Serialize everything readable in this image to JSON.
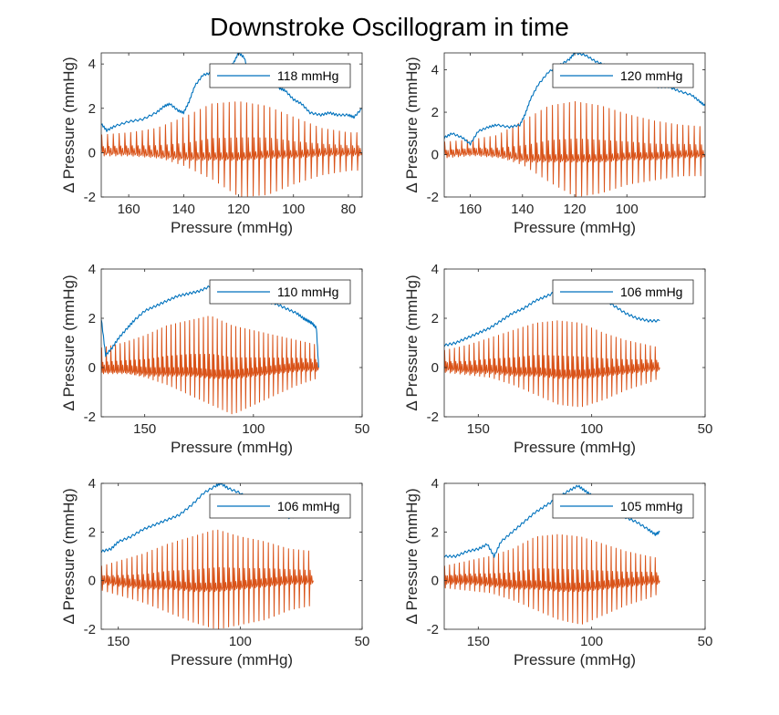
{
  "figure": {
    "title": "Downstroke Oscillogram in time"
  },
  "colors": {
    "envelope": "#0072BD",
    "oscillation": "#D95319",
    "axis": "#262626",
    "background": "#ffffff"
  },
  "chart_data": [
    {
      "type": "line",
      "xlabel": "Pressure (mmHg)",
      "ylabel": "Δ Pressure (mmHg)",
      "xlim": [
        170,
        75
      ],
      "ylim": [
        -2,
        4.5
      ],
      "x_reversed": true,
      "xticks": [
        160,
        140,
        120,
        100,
        80
      ],
      "yticks": [
        -2,
        0,
        2,
        4
      ],
      "legend": "top-right",
      "pulses": 45,
      "x_start": 170,
      "x_end": 75,
      "series": [
        {
          "name": "118 mmHg",
          "kind": "envelope",
          "x": [
            170,
            168,
            165,
            160,
            155,
            150,
            147,
            145,
            142,
            140,
            138,
            136,
            133,
            130,
            127,
            124,
            122,
            120,
            118,
            116,
            114,
            112,
            110,
            108,
            105,
            103,
            100,
            97,
            94,
            90,
            87,
            84,
            80,
            78,
            75
          ],
          "values": [
            1.3,
            1.0,
            1.2,
            1.4,
            1.5,
            1.8,
            2.1,
            2.2,
            1.9,
            1.8,
            2.3,
            3.0,
            3.5,
            3.6,
            3.7,
            3.8,
            4.0,
            4.5,
            4.3,
            3.5,
            3.3,
            3.4,
            3.3,
            3.2,
            2.9,
            2.8,
            2.4,
            2.2,
            1.8,
            1.7,
            1.8,
            1.7,
            1.7,
            1.6,
            2.0
          ]
        },
        {
          "kind": "oscillation",
          "x": [
            170,
            160,
            150,
            140,
            130,
            120,
            110,
            100,
            90,
            80,
            75
          ],
          "upper": [
            0.8,
            0.9,
            1.1,
            1.6,
            2.2,
            2.3,
            2.1,
            1.6,
            1.1,
            0.9,
            0.9
          ],
          "lower": [
            0.0,
            -0.1,
            -0.2,
            -0.6,
            -1.2,
            -2.0,
            -1.9,
            -1.4,
            -1.0,
            -0.8,
            -0.8
          ],
          "baseline": [
            0.0,
            0.0,
            -0.1,
            -0.2,
            -0.2,
            -0.2,
            -0.1,
            -0.1,
            0.0,
            0.0,
            0.0
          ]
        }
      ]
    },
    {
      "type": "line",
      "xlabel": "Pressure (mmHg)",
      "ylabel": "Δ Pressure (mmHg)",
      "xlim": [
        170,
        70
      ],
      "ylim": [
        -2,
        4.8
      ],
      "x_reversed": true,
      "xticks": [
        160,
        140,
        120,
        100
      ],
      "yticks": [
        -2,
        0,
        2,
        4
      ],
      "legend": "top-right",
      "pulses": 46,
      "x_start": 170,
      "x_end": 70,
      "series": [
        {
          "name": "120 mmHg",
          "kind": "envelope",
          "x": [
            170,
            167,
            163,
            160,
            157,
            153,
            150,
            145,
            141,
            139,
            137,
            134,
            130,
            126,
            122,
            120,
            116,
            112,
            108,
            104,
            100,
            96,
            92,
            88,
            84,
            80,
            75,
            72,
            70
          ],
          "values": [
            0.8,
            1.0,
            0.8,
            0.5,
            1.1,
            1.3,
            1.4,
            1.3,
            1.4,
            1.9,
            2.6,
            3.3,
            3.9,
            4.2,
            4.5,
            4.8,
            4.7,
            4.4,
            4.2,
            4.0,
            3.7,
            3.5,
            3.3,
            3.2,
            3.2,
            3.0,
            2.8,
            2.5,
            2.3
          ]
        },
        {
          "kind": "oscillation",
          "x": [
            170,
            160,
            150,
            140,
            130,
            120,
            110,
            100,
            90,
            80,
            70
          ],
          "upper": [
            0.6,
            0.7,
            0.9,
            1.6,
            2.3,
            2.5,
            2.3,
            1.9,
            1.6,
            1.4,
            1.3
          ],
          "lower": [
            0.0,
            0.0,
            -0.1,
            -0.5,
            -1.3,
            -2.0,
            -1.8,
            -1.4,
            -1.2,
            -1.0,
            -1.0
          ],
          "baseline": [
            0.0,
            0.1,
            0.0,
            -0.2,
            -0.2,
            -0.2,
            -0.2,
            -0.1,
            -0.1,
            0.0,
            0.0
          ]
        }
      ]
    },
    {
      "type": "line",
      "xlabel": "Pressure (mmHg)",
      "ylabel": "Δ Pressure (mmHg)",
      "xlim": [
        170,
        50
      ],
      "ylim": [
        -2,
        4
      ],
      "x_reversed": true,
      "xticks": [
        150,
        100,
        50
      ],
      "yticks": [
        -2,
        0,
        2,
        4
      ],
      "legend": "top-right",
      "pulses": 47,
      "x_start": 170,
      "x_end": 70,
      "series": [
        {
          "name": "110 mmHg",
          "kind": "envelope",
          "x": [
            170,
            168,
            165,
            162,
            158,
            155,
            150,
            145,
            140,
            135,
            130,
            125,
            120,
            115,
            110,
            105,
            100,
            95,
            90,
            85,
            80,
            77,
            75,
            73,
            71,
            70
          ],
          "values": [
            2.0,
            0.5,
            0.8,
            1.2,
            1.6,
            1.9,
            2.3,
            2.5,
            2.7,
            2.9,
            3.0,
            3.1,
            3.3,
            3.2,
            3.1,
            2.9,
            2.8,
            2.7,
            2.6,
            2.4,
            2.2,
            2.0,
            1.9,
            1.8,
            1.6,
            0.0
          ]
        },
        {
          "kind": "oscillation",
          "x": [
            170,
            160,
            150,
            140,
            130,
            120,
            110,
            100,
            90,
            80,
            70
          ],
          "upper": [
            0.8,
            1.0,
            1.3,
            1.7,
            1.9,
            2.1,
            1.7,
            1.5,
            1.3,
            1.1,
            0.9
          ],
          "lower": [
            -0.2,
            -0.2,
            -0.4,
            -0.7,
            -1.1,
            -1.5,
            -1.9,
            -1.5,
            -1.1,
            -0.7,
            -0.4
          ],
          "baseline": [
            -0.1,
            -0.1,
            -0.2,
            -0.2,
            -0.2,
            -0.3,
            -0.3,
            -0.2,
            -0.1,
            0.0,
            0.0
          ]
        }
      ]
    },
    {
      "type": "line",
      "xlabel": "Pressure (mmHg)",
      "ylabel": "Δ Pressure (mmHg)",
      "xlim": [
        165,
        50
      ],
      "ylim": [
        -2,
        4
      ],
      "x_reversed": true,
      "xticks": [
        150,
        100,
        50
      ],
      "yticks": [
        -2,
        0,
        2,
        4
      ],
      "legend": "top-right",
      "pulses": 44,
      "x_start": 165,
      "x_end": 70,
      "series": [
        {
          "name": "106 mmHg",
          "kind": "envelope",
          "x": [
            165,
            160,
            155,
            150,
            145,
            140,
            135,
            130,
            125,
            120,
            115,
            110,
            105,
            100,
            95,
            90,
            85,
            80,
            75,
            70
          ],
          "values": [
            0.9,
            1.0,
            1.2,
            1.4,
            1.6,
            1.9,
            2.2,
            2.4,
            2.7,
            2.9,
            3.1,
            3.4,
            3.3,
            3.1,
            2.8,
            2.5,
            2.2,
            2.0,
            1.9,
            1.9
          ]
        },
        {
          "kind": "oscillation",
          "x": [
            165,
            155,
            145,
            135,
            125,
            115,
            105,
            95,
            85,
            75,
            70
          ],
          "upper": [
            0.7,
            0.9,
            1.2,
            1.5,
            1.8,
            1.9,
            1.8,
            1.4,
            1.1,
            0.9,
            0.8
          ],
          "lower": [
            -0.2,
            -0.3,
            -0.4,
            -0.7,
            -1.1,
            -1.5,
            -1.6,
            -1.3,
            -0.9,
            -0.6,
            -0.4
          ],
          "baseline": [
            0.0,
            -0.1,
            -0.1,
            -0.2,
            -0.2,
            -0.3,
            -0.3,
            -0.2,
            -0.1,
            0.0,
            0.0
          ]
        }
      ]
    },
    {
      "type": "line",
      "xlabel": "Pressure (mmHg)",
      "ylabel": "Δ Pressure (mmHg)",
      "xlim": [
        157,
        50
      ],
      "ylim": [
        -2,
        4
      ],
      "x_reversed": true,
      "xticks": [
        150,
        100,
        50
      ],
      "yticks": [
        -2,
        0,
        2,
        4
      ],
      "legend": "top-right",
      "pulses": 42,
      "x_start": 157,
      "x_end": 70,
      "series": [
        {
          "name": "106 mmHg",
          "kind": "envelope",
          "x": [
            157,
            153,
            150,
            145,
            140,
            135,
            130,
            125,
            120,
            115,
            110,
            108,
            105,
            100,
            95,
            90,
            85,
            80,
            75,
            72,
            70
          ],
          "values": [
            1.2,
            1.3,
            1.6,
            1.8,
            2.1,
            2.3,
            2.5,
            2.7,
            3.1,
            3.6,
            3.9,
            4.0,
            3.8,
            3.6,
            3.2,
            3.0,
            2.8,
            2.6,
            2.7,
            2.9,
            3.2
          ]
        },
        {
          "kind": "oscillation",
          "x": [
            157,
            150,
            140,
            130,
            120,
            110,
            100,
            90,
            80,
            70
          ],
          "upper": [
            0.6,
            0.8,
            1.1,
            1.5,
            1.8,
            2.1,
            1.8,
            1.6,
            1.3,
            1.2
          ],
          "lower": [
            -0.4,
            -0.6,
            -0.9,
            -1.3,
            -1.7,
            -2.0,
            -1.8,
            -1.6,
            -1.2,
            -1.0
          ],
          "baseline": [
            0.0,
            -0.1,
            -0.2,
            -0.2,
            -0.3,
            -0.3,
            -0.2,
            -0.1,
            0.0,
            0.0
          ]
        }
      ]
    },
    {
      "type": "line",
      "xlabel": "Pressure (mmHg)",
      "ylabel": "Δ Pressure (mmHg)",
      "xlim": [
        165,
        50
      ],
      "ylim": [
        -2,
        4
      ],
      "x_reversed": true,
      "xticks": [
        150,
        100,
        50
      ],
      "yticks": [
        -2,
        0,
        2,
        4
      ],
      "legend": "top-right",
      "pulses": 44,
      "x_start": 165,
      "x_end": 70,
      "series": [
        {
          "name": "105 mmHg",
          "kind": "envelope",
          "x": [
            165,
            160,
            155,
            150,
            146,
            143,
            140,
            135,
            130,
            125,
            120,
            115,
            110,
            106,
            103,
            100,
            95,
            90,
            85,
            80,
            75,
            72,
            70
          ],
          "values": [
            1.0,
            1.0,
            1.2,
            1.3,
            1.5,
            1.0,
            1.6,
            2.0,
            2.4,
            2.8,
            3.1,
            3.4,
            3.7,
            3.9,
            3.7,
            3.5,
            3.2,
            2.9,
            2.6,
            2.4,
            2.1,
            1.9,
            2.0
          ]
        },
        {
          "kind": "oscillation",
          "x": [
            165,
            155,
            145,
            135,
            125,
            115,
            105,
            95,
            85,
            75,
            70
          ],
          "upper": [
            0.6,
            0.8,
            1.0,
            1.3,
            1.8,
            1.9,
            1.8,
            1.5,
            1.2,
            1.0,
            0.9
          ],
          "lower": [
            -0.3,
            -0.4,
            -0.5,
            -0.8,
            -1.2,
            -1.6,
            -1.8,
            -1.4,
            -1.0,
            -0.7,
            -0.5
          ],
          "baseline": [
            0.0,
            0.0,
            -0.1,
            -0.2,
            -0.2,
            -0.3,
            -0.3,
            -0.2,
            -0.1,
            0.0,
            0.0
          ]
        }
      ]
    }
  ]
}
